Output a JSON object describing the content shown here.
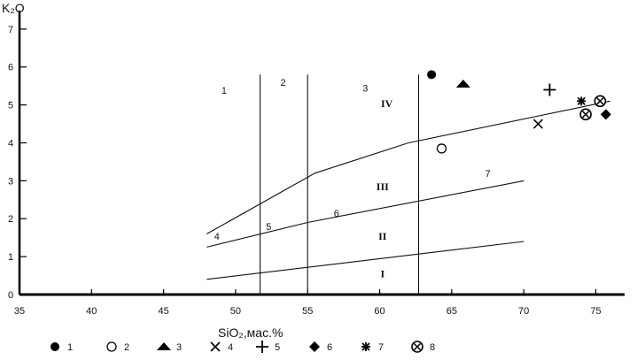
{
  "chart_data": {
    "type": "scatter",
    "title": "",
    "ylabel": "K₂O",
    "xlabel": "SiO₂,мас.%",
    "xlim": [
      35,
      77
    ],
    "ylim": [
      0,
      7.3
    ],
    "xticks": [
      35,
      40,
      45,
      50,
      55,
      60,
      65,
      70,
      75
    ],
    "yticks": [
      0,
      1,
      2,
      3,
      4,
      5,
      6,
      7
    ],
    "boundary_lines": [
      {
        "name": "4-7",
        "points": [
          [
            48,
            1.6
          ],
          [
            55.5,
            3.2
          ],
          [
            62,
            4
          ],
          [
            76,
            5.1
          ]
        ]
      },
      {
        "name": "5-6-7",
        "points": [
          [
            48,
            1.25
          ],
          [
            55,
            1.9
          ],
          [
            70,
            3
          ]
        ]
      },
      {
        "name": "low",
        "points": [
          [
            48,
            0.4
          ],
          [
            70,
            1.4
          ]
        ]
      },
      {
        "name": "v1",
        "points": [
          [
            51.7,
            0
          ],
          [
            51.7,
            5.8
          ]
        ]
      },
      {
        "name": "v2",
        "points": [
          [
            55,
            0
          ],
          [
            55,
            5.8
          ]
        ]
      },
      {
        "name": "v3",
        "points": [
          [
            62.7,
            0
          ],
          [
            62.7,
            5.8
          ]
        ]
      }
    ],
    "field_labels": [
      {
        "text": "1",
        "x": 49.2,
        "y": 5.3
      },
      {
        "text": "2",
        "x": 53.3,
        "y": 5.5
      },
      {
        "text": "3",
        "x": 59,
        "y": 5.35
      },
      {
        "text": "IV",
        "x": 60.5,
        "y": 4.95
      },
      {
        "text": "III",
        "x": 60.2,
        "y": 2.75
      },
      {
        "text": "II",
        "x": 60.2,
        "y": 1.45
      },
      {
        "text": "I",
        "x": 60.2,
        "y": 0.45
      },
      {
        "text": "4",
        "x": 48.7,
        "y": 1.45
      },
      {
        "text": "5",
        "x": 52.3,
        "y": 1.7
      },
      {
        "text": "6",
        "x": 57,
        "y": 2.05
      },
      {
        "text": "7",
        "x": 67.5,
        "y": 3.1
      }
    ],
    "series": [
      {
        "name": "1",
        "marker": "filled-circle",
        "points": [
          [
            63.6,
            5.8
          ]
        ]
      },
      {
        "name": "2",
        "marker": "open-circle",
        "points": [
          [
            64.3,
            3.85
          ]
        ]
      },
      {
        "name": "3",
        "marker": "filled-triangle",
        "points": [
          [
            65.8,
            5.55
          ]
        ]
      },
      {
        "name": "4",
        "marker": "x-cross",
        "points": [
          [
            71,
            4.5
          ]
        ]
      },
      {
        "name": "5",
        "marker": "plus",
        "points": [
          [
            71.8,
            5.4
          ]
        ]
      },
      {
        "name": "6",
        "marker": "filled-diamond",
        "points": [
          [
            75.7,
            4.75
          ]
        ]
      },
      {
        "name": "7",
        "marker": "asterisk",
        "points": [
          [
            74,
            5.1
          ]
        ]
      },
      {
        "name": "8",
        "marker": "circled-x",
        "points": [
          [
            75.3,
            5.1
          ],
          [
            74.3,
            4.75
          ]
        ]
      }
    ],
    "grid": false,
    "legend": "bottom"
  }
}
